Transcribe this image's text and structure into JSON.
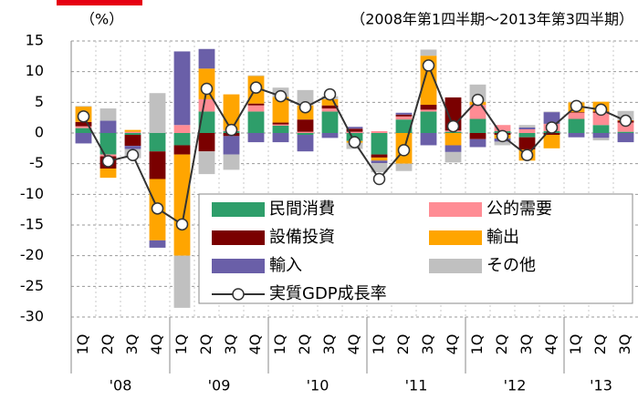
{
  "chart_data": {
    "type": "stacked_bar_line",
    "y_unit": "（%）",
    "subtitle": "（2008年第1四半期～2013年第3四半期）",
    "categories": [
      "1Q",
      "2Q",
      "3Q",
      "4Q",
      "1Q",
      "2Q",
      "3Q",
      "4Q",
      "1Q",
      "2Q",
      "3Q",
      "4Q",
      "1Q",
      "2Q",
      "3Q",
      "4Q",
      "1Q",
      "2Q",
      "3Q",
      "4Q",
      "1Q",
      "2Q",
      "3Q"
    ],
    "years": [
      "'08",
      "'09",
      "'10",
      "'11",
      "'12",
      "'13"
    ],
    "ylim": [
      -30,
      15
    ],
    "yticks": [
      15,
      10,
      5,
      0,
      -5,
      -10,
      -15,
      -20,
      -25,
      -30
    ],
    "grid": true,
    "legend": "lower right",
    "series": [
      {
        "name": "民間消費",
        "color": "#2e9e6a",
        "values": [
          0.8,
          -3.5,
          -0.3,
          -3,
          -2,
          3.5,
          0.3,
          3.5,
          1.2,
          -0.3,
          3.5,
          -1.3,
          -3.5,
          2.2,
          3.5,
          0.2,
          2.3,
          0.3,
          -0.7,
          0.3,
          2.3,
          1.3,
          0.2
        ]
      },
      {
        "name": "公的需要",
        "color": "#ff8c94",
        "values": [
          0.3,
          -0.3,
          0.2,
          0,
          1.3,
          2,
          0.2,
          1,
          0.2,
          0.2,
          0.5,
          0.2,
          0.3,
          0.5,
          0.3,
          0.2,
          2.3,
          1,
          0.6,
          1.2,
          1,
          2,
          1.5
        ]
      },
      {
        "name": "設備投資",
        "color": "#7a0000",
        "values": [
          0.7,
          -2,
          -1.8,
          -4.5,
          -1.5,
          -3,
          -0.5,
          0.3,
          0.3,
          2,
          0.5,
          0.5,
          -0.5,
          0.3,
          0.8,
          5.4,
          -1,
          -0.3,
          -2,
          -0.3,
          0.1,
          0.2,
          0.3
        ]
      },
      {
        "name": "輸出",
        "color": "#ffa500",
        "values": [
          2.5,
          -1.5,
          0.3,
          -10,
          -16.5,
          5,
          5.8,
          4.5,
          4.2,
          2.3,
          1,
          -0.3,
          -0.5,
          -5,
          8,
          -2,
          0.5,
          -0.6,
          -1.8,
          -2.2,
          1.6,
          1.6,
          0.1
        ]
      },
      {
        "name": "輸入",
        "color": "#6a5fa8",
        "values": [
          -1.7,
          2,
          -0.5,
          -1.2,
          12,
          3.2,
          -3,
          -1.5,
          -1.5,
          -2.7,
          -0.8,
          0.3,
          -0.4,
          0.3,
          -2,
          -1.1,
          -1.3,
          -0.5,
          0.3,
          1.9,
          -0.7,
          -0.8,
          -1.5
        ]
      },
      {
        "name": "その他",
        "color": "#c0c0c0",
        "values": [
          0.1,
          2,
          -1.5,
          6.5,
          -8.5,
          -3.7,
          -2.5,
          0.1,
          1.5,
          2.5,
          0.5,
          -1,
          -1.5,
          -1.2,
          1,
          -1.7,
          2.8,
          -0.6,
          0.4,
          0.1,
          0.1,
          -0.4,
          1.5
        ]
      }
    ],
    "line_series": {
      "name": "実質GDP成長率",
      "color": "#333333",
      "values": [
        2.7,
        -4.6,
        -3.6,
        -12.3,
        -14.9,
        7.2,
        0.5,
        7.4,
        6.0,
        4.2,
        6.3,
        -1.5,
        -7.5,
        -2.8,
        11.0,
        1.1,
        5.4,
        -0.5,
        -3.6,
        0.9,
        4.4,
        3.8,
        2.0
      ]
    }
  }
}
